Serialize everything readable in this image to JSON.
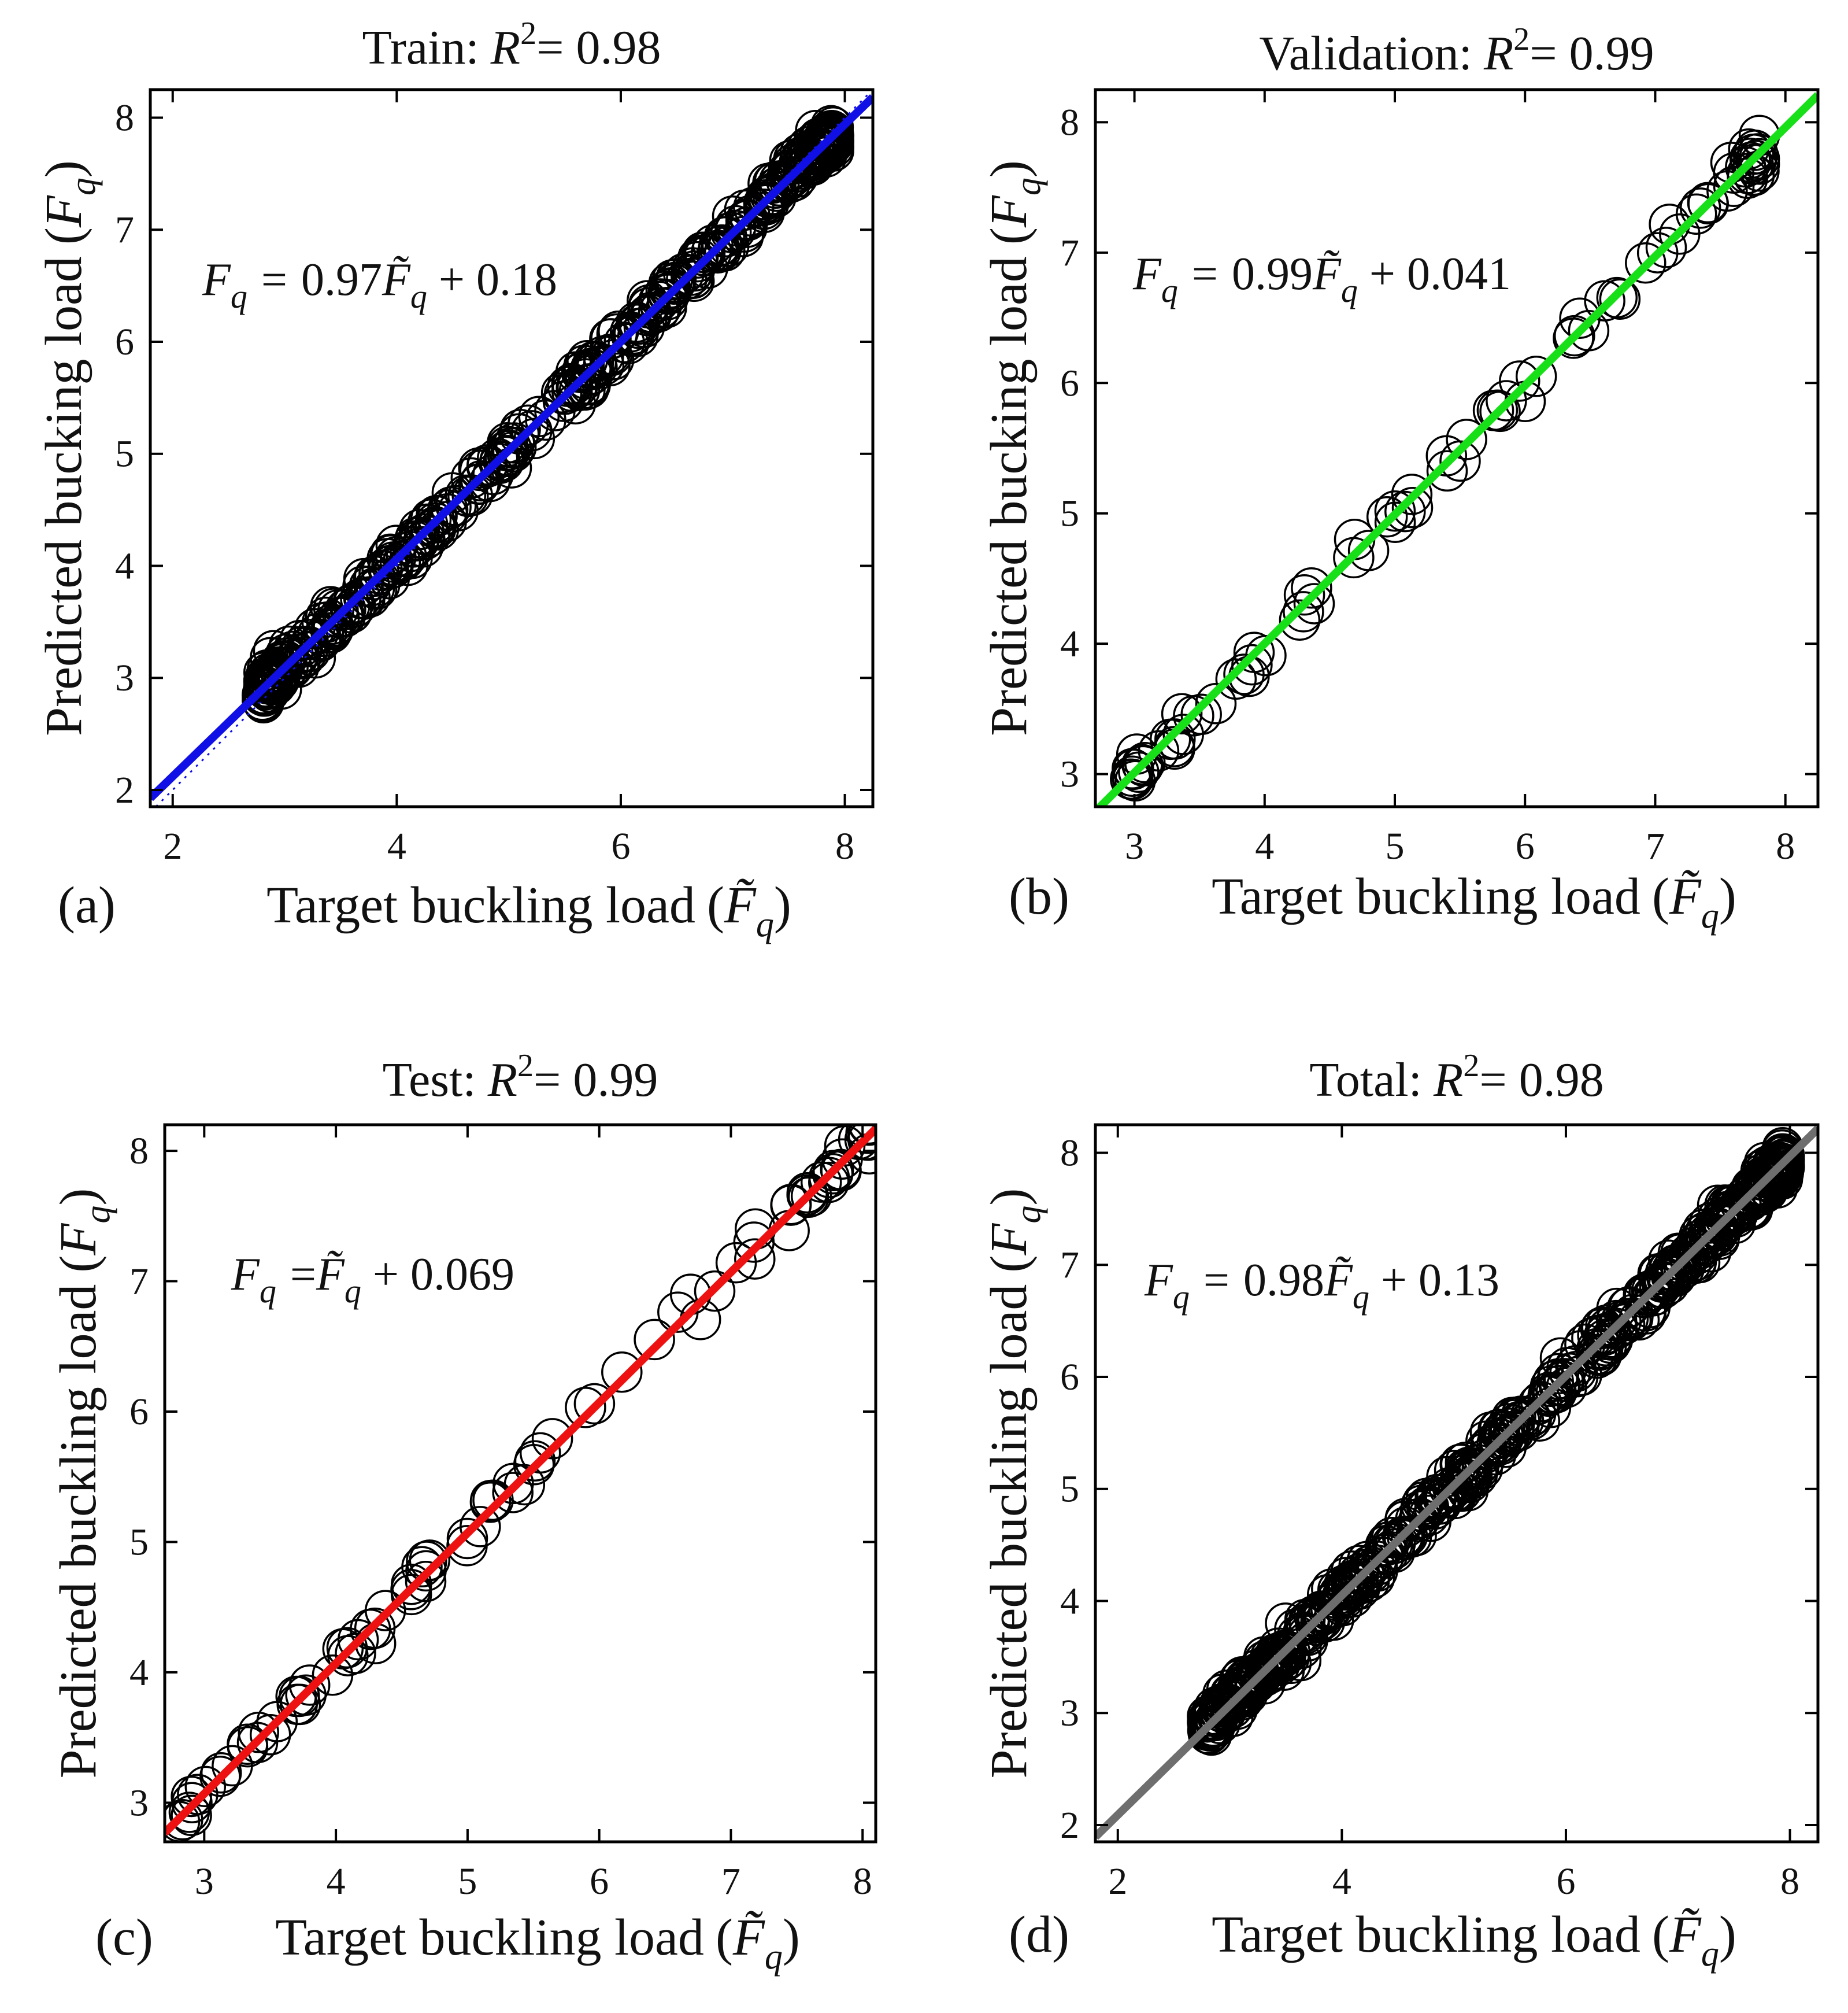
{
  "chart_data": [
    {
      "type": "scatter",
      "panel_label": "(a)",
      "title_prefix": "Train:",
      "title_stat": "R",
      "title_sup": "2",
      "title_value": "= 0.98",
      "xlabel": "Target buckling load",
      "ylabel": "Predicted bucking load",
      "symbol_target": "F̃",
      "symbol_pred": "F",
      "symbol_sub": "q",
      "equation": {
        "lhs": "F",
        "sub": "q",
        "eq": "=",
        "slope": "0.97",
        "var": "F̃",
        "var_sub": "q",
        "plus": "+ 0.18"
      },
      "fit": {
        "slope": 0.97,
        "intercept": 0.18,
        "color": "#1010e6",
        "ideal_dotted": true
      },
      "xlim": [
        1.8,
        8.25
      ],
      "ylim": [
        1.85,
        8.25
      ],
      "xticks": [
        2,
        4,
        6,
        8
      ],
      "yticks": [
        2,
        3,
        4,
        5,
        6,
        7,
        8
      ],
      "n_points": 420,
      "x_range": [
        2.8,
        7.9
      ],
      "seed": 11,
      "noise": 0.07
    },
    {
      "type": "scatter",
      "panel_label": "(b)",
      "title_prefix": "Validation:",
      "title_stat": "R",
      "title_sup": "2",
      "title_value": "= 0.99",
      "xlabel": "Target buckling load",
      "ylabel": "Predicted bucking load",
      "symbol_target": "F̃",
      "symbol_pred": "F",
      "symbol_sub": "q",
      "equation": {
        "lhs": "F",
        "sub": "q",
        "eq": "=",
        "slope": "0.99",
        "var": "F̃",
        "var_sub": "q",
        "plus": "+ 0.041"
      },
      "fit": {
        "slope": 0.99,
        "intercept": 0.041,
        "color": "#18e018",
        "ideal_dotted": false
      },
      "xlim": [
        2.7,
        8.25
      ],
      "ylim": [
        2.75,
        8.25
      ],
      "xticks": [
        3,
        4,
        5,
        6,
        7,
        8
      ],
      "yticks": [
        3,
        4,
        5,
        6,
        7,
        8
      ],
      "n_points": 90,
      "x_range": [
        2.95,
        7.8
      ],
      "seed": 23,
      "noise": 0.06
    },
    {
      "type": "scatter",
      "panel_label": "(c)",
      "title_prefix": "Test:",
      "title_stat": "R",
      "title_sup": "2",
      "title_value": "= 0.99",
      "xlabel": "Target buckling load",
      "ylabel": "Predicted buckling load",
      "symbol_target": "F̃",
      "symbol_pred": "F",
      "symbol_sub": "q",
      "equation": {
        "lhs": "F",
        "sub": "q",
        "eq": "=",
        "slope": "",
        "var": "F̃",
        "var_sub": "q",
        "plus": "+ 0.069"
      },
      "fit": {
        "slope": 1.0,
        "intercept": 0.069,
        "color": "#ee1111",
        "ideal_dotted": false
      },
      "xlim": [
        2.7,
        8.1
      ],
      "ylim": [
        2.7,
        8.2
      ],
      "xticks": [
        3,
        4,
        5,
        6,
        7,
        8
      ],
      "yticks": [
        3,
        4,
        5,
        6,
        7,
        8
      ],
      "n_points": 90,
      "x_range": [
        2.8,
        8.05
      ],
      "seed": 37,
      "noise": 0.06
    },
    {
      "type": "scatter",
      "panel_label": "(d)",
      "title_prefix": "Total:",
      "title_stat": "R",
      "title_sup": "2",
      "title_value": "= 0.98",
      "xlabel": "Target buckling load",
      "ylabel": "Predicted buckling load",
      "symbol_target": "F̃",
      "symbol_pred": "F",
      "symbol_sub": "q",
      "equation": {
        "lhs": "F",
        "sub": "q",
        "eq": "=",
        "slope": "0.98",
        "var": "F̃",
        "var_sub": "q",
        "plus": "+ 0.13"
      },
      "fit": {
        "slope": 0.98,
        "intercept": 0.13,
        "color": "#6e6e6e",
        "ideal_dotted": false
      },
      "xlim": [
        1.8,
        8.25
      ],
      "ylim": [
        1.85,
        8.25
      ],
      "xticks": [
        2,
        4,
        6,
        8
      ],
      "yticks": [
        2,
        3,
        4,
        5,
        6,
        7,
        8
      ],
      "n_points": 560,
      "x_range": [
        2.8,
        7.95
      ],
      "seed": 51,
      "noise": 0.07
    }
  ]
}
